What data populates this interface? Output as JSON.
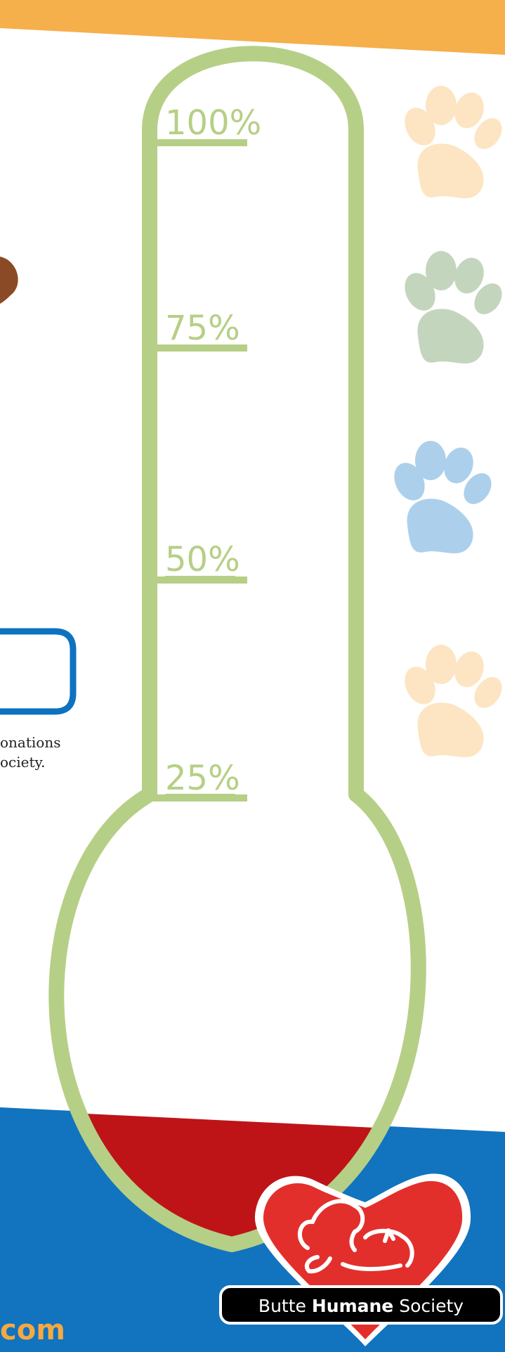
{
  "thermometer": {
    "marks": [
      {
        "label": "100%",
        "value": 100
      },
      {
        "label": "75%",
        "value": 75
      },
      {
        "label": "50%",
        "value": 50
      },
      {
        "label": "25%",
        "value": 25
      }
    ],
    "fill_color": "#be1418",
    "outline_color": "#b6cf86"
  },
  "text": {
    "line1": "onations",
    "line2": "ociety.",
    "url_fragment": "com"
  },
  "logo": {
    "name_part1": "Butte",
    "name_bold": "Humane",
    "name_part2": "Society"
  },
  "paws": [
    {
      "icon": "paw-icon",
      "color": "#fde5c3"
    },
    {
      "icon": "paw-icon",
      "color": "#c4d5bd"
    },
    {
      "icon": "paw-icon",
      "color": "#acd0eb"
    },
    {
      "icon": "paw-icon",
      "color": "#fde5c3"
    }
  ],
  "colors": {
    "top_band": "#f5af4b",
    "bottom_band": "#1273bf",
    "logo_heart": "#e32f2c",
    "accent_blue_frame": "#0d72c0"
  }
}
